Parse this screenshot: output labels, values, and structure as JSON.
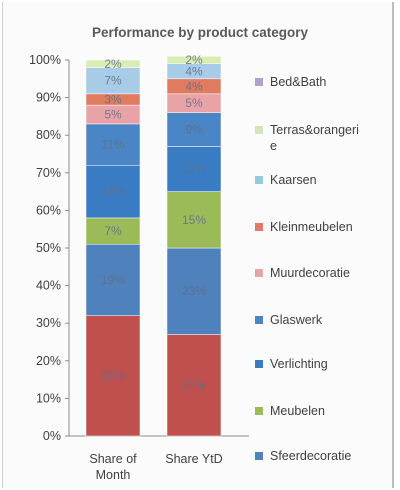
{
  "chart_data": {
    "type": "bar",
    "stacked": true,
    "title": "Performance by product category",
    "categories": [
      "Share of Month",
      "Share YtD"
    ],
    "category_lines": [
      [
        "Share of",
        "Month"
      ],
      [
        "Share YtD"
      ]
    ],
    "ylim": [
      0,
      100
    ],
    "yticks": [
      "0%",
      "10%",
      "20%",
      "30%",
      "40%",
      "50%",
      "60%",
      "70%",
      "80%",
      "90%",
      "100%"
    ],
    "series": [
      {
        "name": "Sfeerdecoratie",
        "color": "#c0504d",
        "values": [
          32,
          27
        ],
        "labels": [
          "32%",
          "27%"
        ]
      },
      {
        "name": "Meubelen",
        "color": "#4f81bd",
        "values": [
          19,
          23
        ],
        "labels": [
          "19%",
          "23%"
        ]
      },
      {
        "name": "Verlichting",
        "color": "#9bbb59",
        "values": [
          7,
          15
        ],
        "labels": [
          "7%",
          "15%"
        ]
      },
      {
        "name": "Glaswerk",
        "color": "#3a7cc4",
        "values": [
          14,
          12
        ],
        "labels": [
          "14%",
          "12%"
        ]
      },
      {
        "name": "Muurdecoratie",
        "color": "#4a86c6",
        "values": [
          11,
          9
        ],
        "labels": [
          "11%",
          "9%"
        ]
      },
      {
        "name": "Kleinmeubelen",
        "color": "#e8a3a6",
        "values": [
          5,
          5
        ],
        "labels": [
          "5%",
          "5%"
        ]
      },
      {
        "name": "Kaarsen",
        "color": "#e07b60",
        "values": [
          3,
          4
        ],
        "labels": [
          "3%",
          "4%"
        ]
      },
      {
        "name": "Terras&orangerie",
        "color": "#a8cce8",
        "values": [
          7,
          4
        ],
        "labels": [
          "7%",
          "4%"
        ]
      },
      {
        "name": "Bed&Bath",
        "color": "#d9ecb4",
        "values": [
          2,
          2
        ],
        "labels": [
          "2%",
          "2%"
        ]
      }
    ],
    "legend_order": [
      {
        "name": "Bed&Bath",
        "color": "#b3a2c7",
        "lines": [
          "Bed&Bath"
        ]
      },
      {
        "name": "Terras&orangerie",
        "color": "#d7e4bd",
        "lines": [
          "Terras&orangeri",
          "e"
        ]
      },
      {
        "name": "Kaarsen",
        "color": "#93cddd",
        "lines": [
          "Kaarsen"
        ]
      },
      {
        "name": "Kleinmeubelen",
        "color": "#e6786a",
        "lines": [
          "Kleinmeubelen"
        ]
      },
      {
        "name": "Muurdecoratie",
        "color": "#e8a3a6",
        "lines": [
          "Muurdecoratie"
        ]
      },
      {
        "name": "Glaswerk",
        "color": "#4a86c6",
        "lines": [
          "Glaswerk"
        ]
      },
      {
        "name": "Verlichting",
        "color": "#3a7cc4",
        "lines": [
          "Verlichting"
        ]
      },
      {
        "name": "Meubelen",
        "color": "#9bbb59",
        "lines": [
          "Meubelen"
        ]
      },
      {
        "name": "Sfeerdecoratie",
        "color": "#4f81bd",
        "lines": [
          "Sfeerdecoratie"
        ]
      }
    ],
    "legend_position": "right",
    "grid": false
  }
}
